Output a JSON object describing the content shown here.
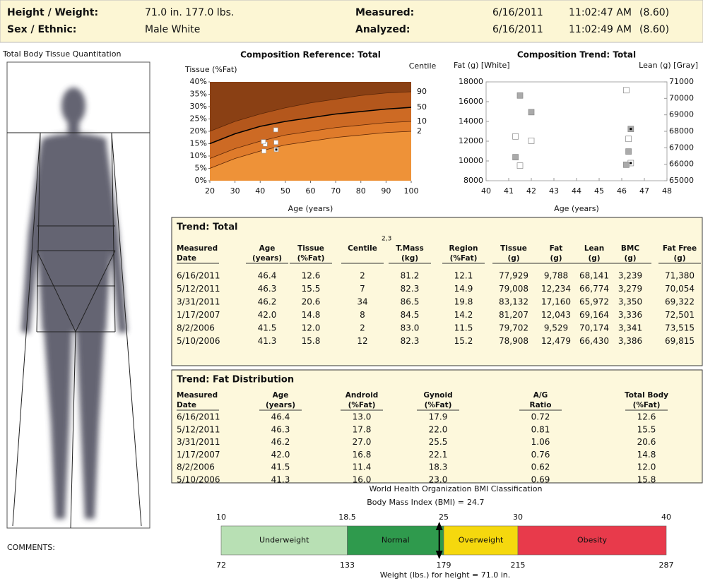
{
  "header": {
    "rows": [
      [
        "Height / Weight:",
        "71.0 in.   177.0 lbs.",
        "Measured:",
        "6/16/2011",
        "11:02:47 AM",
        "(8.60)"
      ],
      [
        "Sex / Ethnic:",
        "Male   White",
        "Analyzed:",
        "6/16/2011",
        "11:02:49 AM",
        "(8.60)"
      ]
    ]
  },
  "image_panel": {
    "title": "Total Body Tissue Quantitation",
    "comments": "COMMENTS:"
  },
  "chart_data": [
    {
      "type": "line",
      "title": "Composition Reference: Total",
      "y_label": "Tissue (%Fat)",
      "y2_label": "Centile",
      "x_label": "Age (years)",
      "xlim": [
        20,
        100
      ],
      "xticks": [
        20,
        30,
        40,
        50,
        60,
        70,
        80,
        90,
        100
      ],
      "ylim": [
        0,
        40
      ],
      "yticks": [
        {
          "value": 0,
          "label": "0%"
        },
        {
          "value": 5,
          "label": "5%"
        },
        {
          "value": 10,
          "label": "10%"
        },
        {
          "value": 15,
          "label": "15%"
        },
        {
          "value": 20,
          "label": "20%"
        },
        {
          "value": 25,
          "label": "25%"
        },
        {
          "value": 30,
          "label": "30%"
        },
        {
          "value": 35,
          "label": "35%"
        },
        {
          "value": 40,
          "label": "40%"
        }
      ],
      "background": "#8a4014",
      "x": [
        20,
        30,
        40,
        50,
        60,
        70,
        80,
        90,
        100
      ],
      "series": [
        {
          "name": "90",
          "color": "#5a2608",
          "fill": "#b4571c",
          "values": [
            20,
            24,
            27,
            29.5,
            31.5,
            33,
            34.5,
            35.5,
            36
          ]
        },
        {
          "name": "50",
          "color": "#000000",
          "fill": "#cd6a24",
          "values": [
            15,
            19,
            22,
            24,
            25.5,
            27,
            28,
            29,
            29.7
          ]
        },
        {
          "name": "10",
          "color": "#5a2608",
          "fill": "#df7b2b",
          "values": [
            9,
            13,
            16,
            18.5,
            20,
            21.5,
            22.5,
            23.5,
            24
          ]
        },
        {
          "name": "2",
          "color": "#5a2608",
          "fill": "#ee9238",
          "values": [
            5,
            9,
            12,
            14.5,
            16,
            17.5,
            18.5,
            19.5,
            20
          ]
        }
      ],
      "points": {
        "color": "#ffffff",
        "x": [
          46.4,
          46.3,
          46.2,
          42.0,
          41.5,
          41.3
        ],
        "values": [
          12.6,
          15.5,
          20.6,
          14.8,
          12.0,
          15.8
        ]
      }
    },
    {
      "type": "scatter",
      "title": "Composition Trend: Total",
      "y_label": "Fat (g) [White]",
      "y2_label": "Lean (g) [Gray]",
      "x_label": "Age (years)",
      "xlim": [
        40,
        48
      ],
      "xticks": [
        40,
        41,
        42,
        43,
        44,
        45,
        46,
        47,
        48
      ],
      "ylim": [
        8000,
        18000
      ],
      "yticks": [
        8000,
        10000,
        12000,
        14000,
        16000,
        18000
      ],
      "y2lim": [
        65000,
        71000
      ],
      "y2ticks": [
        65000,
        66000,
        67000,
        68000,
        69000,
        70000,
        71000
      ],
      "series": [
        {
          "color": "#ffffff",
          "x": [
            46.4,
            46.3,
            46.2,
            42.0,
            41.5,
            41.3
          ],
          "values": [
            9788,
            12234,
            17160,
            12043,
            9529,
            12479
          ]
        },
        {
          "color": "#aaaaaa",
          "axis": "y2",
          "x": [
            46.4,
            46.3,
            46.2,
            42.0,
            41.5,
            41.3
          ],
          "values": [
            68141,
            66774,
            65972,
            69164,
            70174,
            66430
          ]
        }
      ]
    }
  ],
  "trend_total": {
    "title": "Trend: Total",
    "superscript": "2,3",
    "headers": [
      [
        "Measured",
        "Date"
      ],
      [
        "Age",
        "(years)"
      ],
      [
        "Tissue",
        "(%Fat)"
      ],
      [
        "Centile"
      ],
      [
        "T.Mass",
        "(kg)"
      ],
      [
        "Region",
        "(%Fat)"
      ],
      [
        "Tissue",
        "(g)"
      ],
      [
        "Fat",
        "(g)"
      ],
      [
        "Lean",
        "(g)"
      ],
      [
        "BMC",
        "(g)"
      ],
      [
        "Fat Free",
        "(g)"
      ]
    ],
    "rows": [
      [
        "6/16/2011",
        "46.4",
        "12.6",
        "2",
        "81.2",
        "12.1",
        "77,929",
        "9,788",
        "68,141",
        "3,239",
        "71,380"
      ],
      [
        "5/12/2011",
        "46.3",
        "15.5",
        "7",
        "82.3",
        "14.9",
        "79,008",
        "12,234",
        "66,774",
        "3,279",
        "70,054"
      ],
      [
        "3/31/2011",
        "46.2",
        "20.6",
        "34",
        "86.5",
        "19.8",
        "83,132",
        "17,160",
        "65,972",
        "3,350",
        "69,322"
      ],
      [
        "1/17/2007",
        "42.0",
        "14.8",
        "8",
        "84.5",
        "14.2",
        "81,207",
        "12,043",
        "69,164",
        "3,336",
        "72,501"
      ],
      [
        "8/2/2006",
        "41.5",
        "12.0",
        "2",
        "83.0",
        "11.5",
        "79,702",
        "9,529",
        "70,174",
        "3,341",
        "73,515"
      ],
      [
        "5/10/2006",
        "41.3",
        "15.8",
        "12",
        "82.3",
        "15.2",
        "78,908",
        "12,479",
        "66,430",
        "3,386",
        "69,815"
      ]
    ]
  },
  "trend_fat": {
    "title": "Trend: Fat Distribution",
    "headers": [
      [
        "Measured",
        "Date"
      ],
      [
        "Age",
        "(years)"
      ],
      [
        "Android",
        "(%Fat)"
      ],
      [
        "Gynoid",
        "(%Fat)"
      ],
      [
        "A/G",
        "Ratio"
      ],
      [
        "Total Body",
        "(%Fat)"
      ]
    ],
    "rows": [
      [
        "6/16/2011",
        "46.4",
        "13.0",
        "17.9",
        "0.72",
        "12.6"
      ],
      [
        "5/12/2011",
        "46.3",
        "17.8",
        "22.0",
        "0.81",
        "15.5"
      ],
      [
        "3/31/2011",
        "46.2",
        "27.0",
        "25.5",
        "1.06",
        "20.6"
      ],
      [
        "1/17/2007",
        "42.0",
        "16.8",
        "22.1",
        "0.76",
        "14.8"
      ],
      [
        "8/2/2006",
        "41.5",
        "11.4",
        "18.3",
        "0.62",
        "12.0"
      ],
      [
        "5/10/2006",
        "41.3",
        "16.0",
        "23.0",
        "0.69",
        "15.8"
      ]
    ]
  },
  "bmi": {
    "title": "World Health Organization BMI Classification",
    "bmi_label": "Body Mass Index (BMI) =",
    "bmi": 24.7,
    "ticks": [
      10,
      18.5,
      25,
      30,
      40
    ],
    "weights": [
      72,
      133,
      179,
      215,
      287
    ],
    "categories": [
      {
        "name": "Underweight",
        "color": "#b8e0b4"
      },
      {
        "name": "Normal",
        "color": "#2f9a4d"
      },
      {
        "name": "Overweight",
        "color": "#f5d80e"
      },
      {
        "name": "Obesity",
        "color": "#e83a4b"
      }
    ],
    "weight_label": "Weight (lbs.) for height = 71.0 in."
  }
}
